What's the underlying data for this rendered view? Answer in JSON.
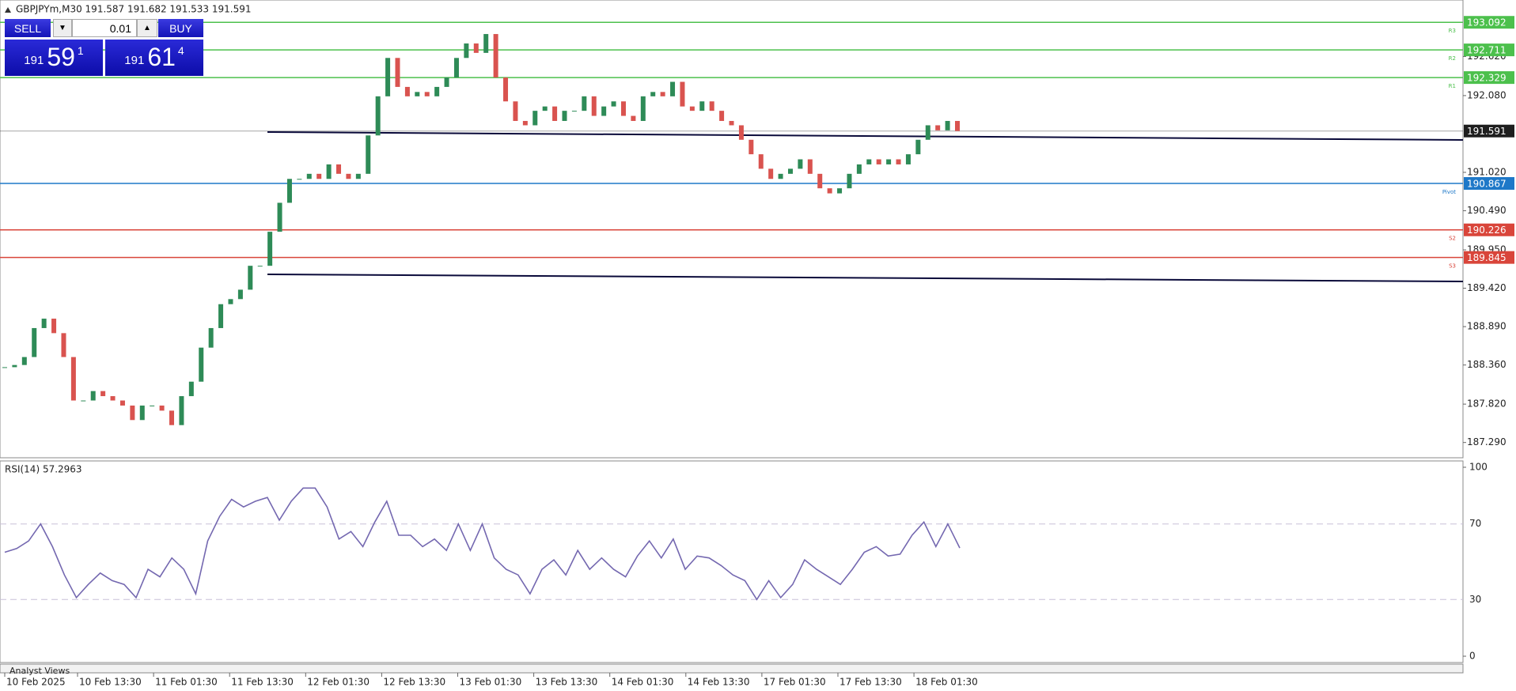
{
  "header": {
    "symbol_info": "GBPJPYm,M30  191.587 191.682 191.533 191.591"
  },
  "trade_panel": {
    "sell": "SELL",
    "lot": "0.01",
    "buy": "BUY",
    "sell_price": {
      "big": "191",
      "main": "59",
      "small": "1"
    },
    "buy_price": {
      "big": "191",
      "main": "61",
      "small": "4"
    }
  },
  "price_chart": {
    "ylim": [
      187.09,
      193.4
    ],
    "yticks": [
      {
        "value": 192.62,
        "label": "192.620"
      },
      {
        "value": 192.08,
        "label": "192.080"
      },
      {
        "value": 191.02,
        "label": "191.020"
      },
      {
        "value": 190.49,
        "label": "190.490"
      },
      {
        "value": 189.95,
        "label": "189.950"
      },
      {
        "value": 189.42,
        "label": "189.420"
      },
      {
        "value": 188.89,
        "label": "188.890"
      },
      {
        "value": 188.36,
        "label": "188.360"
      },
      {
        "value": 187.82,
        "label": "187.820"
      },
      {
        "value": 187.29,
        "label": "187.290"
      }
    ],
    "closes": [
      188.33,
      188.36,
      188.47,
      188.87,
      189.0,
      188.8,
      188.47,
      187.87,
      187.87,
      188.0,
      187.93,
      187.87,
      187.8,
      187.6,
      187.8,
      187.8,
      187.73,
      187.53,
      187.93,
      188.13,
      188.6,
      188.87,
      189.2,
      189.27,
      189.4,
      189.73,
      189.73,
      190.2,
      190.6,
      190.93,
      190.93,
      191.0,
      190.93,
      191.13,
      191.0,
      190.93,
      191.0,
      191.53,
      192.07,
      192.6,
      192.2,
      192.07,
      192.13,
      192.07,
      192.2,
      192.33,
      192.6,
      192.8,
      192.67,
      192.93,
      192.33,
      192.0,
      191.73,
      191.67,
      191.87,
      191.93,
      191.73,
      191.87,
      191.87,
      192.07,
      191.8,
      191.93,
      192.0,
      191.8,
      191.73,
      192.07,
      192.13,
      192.07,
      192.27,
      191.93,
      191.87,
      192.0,
      191.87,
      191.73,
      191.67,
      191.47,
      191.27,
      191.07,
      190.93,
      191.0,
      191.07,
      191.2,
      191.0,
      190.8,
      190.73,
      190.8,
      191.0,
      191.13,
      191.2,
      191.13,
      191.2,
      191.13,
      191.27,
      191.47,
      191.67,
      191.6,
      191.73,
      191.591
    ],
    "up_color": "#2e8b57",
    "down_color": "#d9534f",
    "levels": [
      {
        "name": "R3",
        "value": 193.092,
        "color": "#4cc04c"
      },
      {
        "name": "R2",
        "value": 192.711,
        "color": "#4cc04c"
      },
      {
        "name": "R1",
        "value": 192.329,
        "color": "#4cc04c"
      },
      {
        "value": 191.591,
        "color": "#1e1e1e"
      },
      {
        "name": "Pivot",
        "value": 190.867,
        "color": "#1e78c8"
      },
      {
        "name": "S2",
        "value": 190.226,
        "color": "#d9453a"
      },
      {
        "name": "S3",
        "value": 189.845,
        "color": "#d9453a"
      }
    ]
  },
  "time_axis": {
    "labels": [
      "10 Feb 2025",
      "10 Feb 13:30",
      "11 Feb 01:30",
      "11 Feb 13:30",
      "12 Feb 01:30",
      "12 Feb 13:30",
      "13 Feb 01:30",
      "13 Feb 13:30",
      "14 Feb 01:30",
      "14 Feb 13:30",
      "17 Feb 01:30",
      "17 Feb 13:30",
      "18 Feb 01:30"
    ]
  },
  "rsi": {
    "title": "RSI(14) 57.2963",
    "ylim": [
      0,
      100
    ],
    "yticks": [
      0,
      30,
      70,
      100
    ],
    "color": "#7468b0",
    "values": [
      55,
      57,
      61,
      70,
      58,
      43,
      31,
      38,
      44,
      40,
      38,
      31,
      46,
      42,
      52,
      46,
      33,
      61,
      74,
      83,
      79,
      82,
      84,
      72,
      82,
      89,
      89,
      79,
      62,
      66,
      58,
      71,
      82,
      64,
      64,
      58,
      62,
      56,
      70,
      56,
      70,
      52,
      46,
      43,
      33,
      46,
      51,
      43,
      56,
      46,
      52,
      46,
      42,
      53,
      61,
      52,
      62,
      46,
      53,
      52,
      48,
      43,
      40,
      30,
      40,
      31,
      38,
      51,
      46,
      42,
      38,
      46,
      55,
      58,
      53,
      54,
      64,
      71,
      58,
      70,
      57.3
    ]
  },
  "footer": {
    "tab": "Analyst Views"
  }
}
